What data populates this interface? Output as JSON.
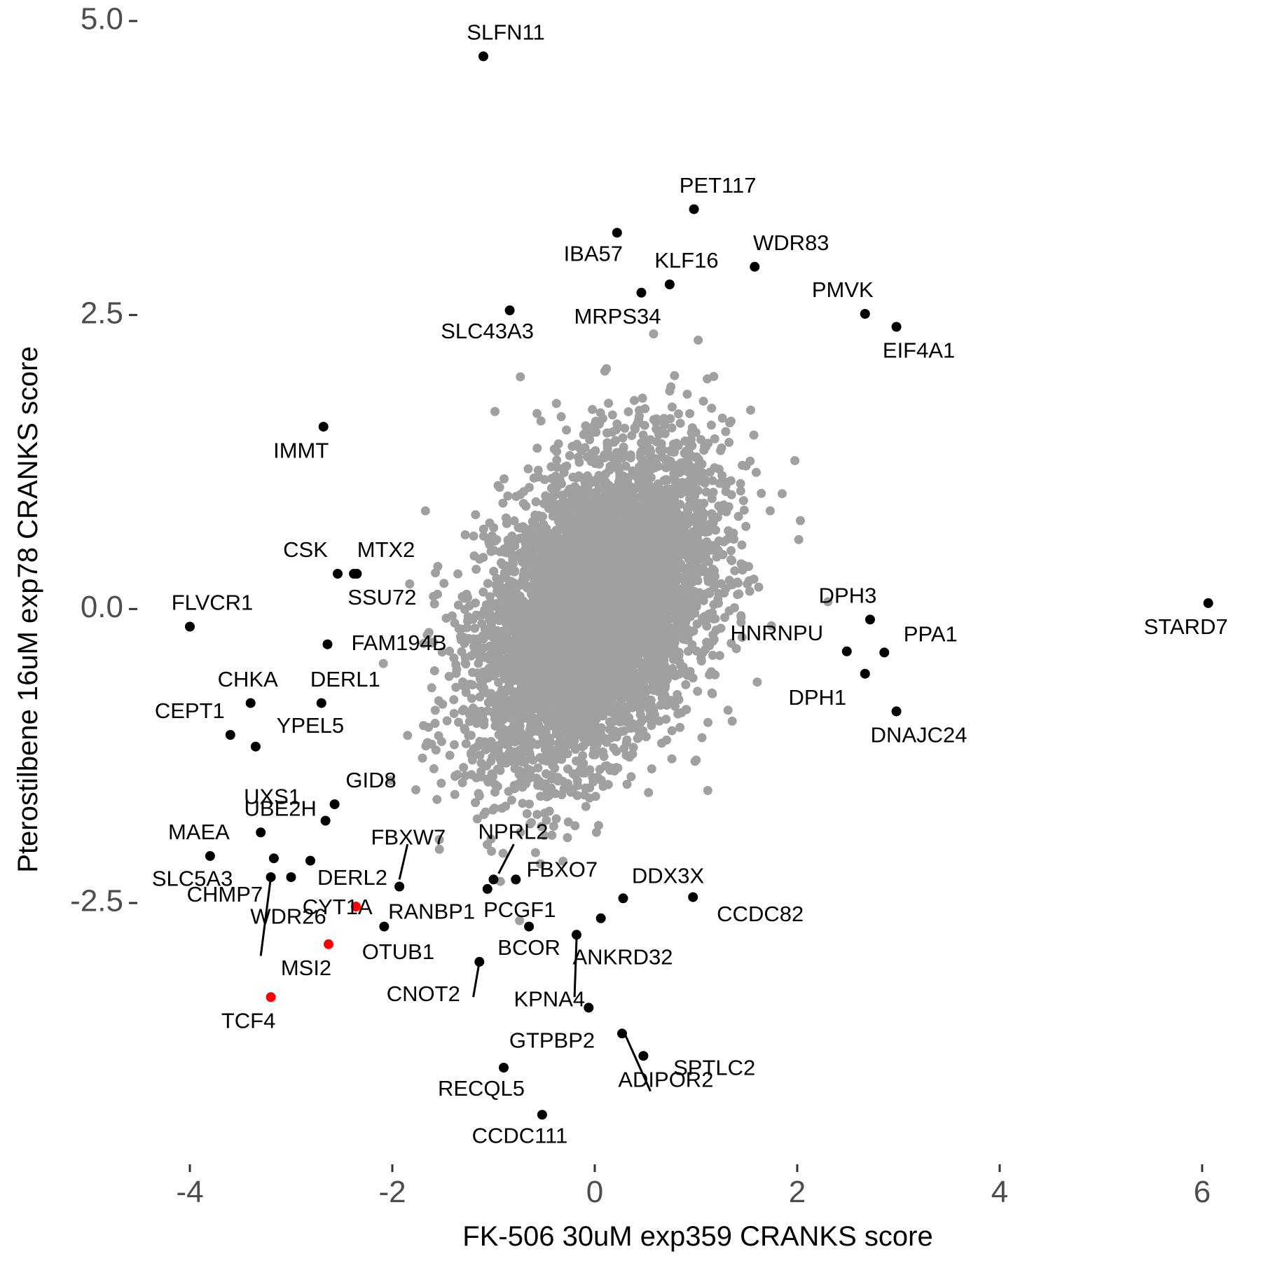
{
  "chart_data": {
    "type": "scatter",
    "xlabel": "FK-506 30uM exp359 CRANKS score",
    "ylabel": "Pterostilbene 16uM exp78 CRANKS score",
    "xlim": [
      -4.3,
      6.3
    ],
    "ylim": [
      -4.6,
      5.1
    ],
    "x_ticks": [
      -4,
      -2,
      0,
      2,
      4,
      6
    ],
    "x_tick_labels": [
      "-4",
      "-2",
      "0",
      "2",
      "4",
      "6"
    ],
    "y_ticks": [
      -2.5,
      0.0,
      2.5,
      5.0
    ],
    "y_tick_labels": [
      "-2.5",
      "0.0",
      "2.5",
      "5.0"
    ],
    "grid": false,
    "background_color": "#a0a0a0",
    "highlight_color": "#000000",
    "special_color": "#ff0000",
    "background_cloud": {
      "x_center": 0,
      "y_center": 0,
      "x_sd": 0.7,
      "y_sd": 0.75,
      "count": 6000
    },
    "series": [
      {
        "color": "#000000",
        "points": [
          {
            "x": -1.1,
            "y": 4.7,
            "label": "SLFN11"
          },
          {
            "x": 0.98,
            "y": 3.4,
            "label": "PET117"
          },
          {
            "x": 0.22,
            "y": 3.2,
            "label": "IBA57"
          },
          {
            "x": 1.58,
            "y": 2.91,
            "label": "WDR83"
          },
          {
            "x": 0.74,
            "y": 2.76,
            "label": "KLF16"
          },
          {
            "x": 0.46,
            "y": 2.69,
            "label": "MRPS34"
          },
          {
            "x": 2.67,
            "y": 2.51,
            "label": "PMVK"
          },
          {
            "x": -0.84,
            "y": 2.54,
            "label": "SLC43A3"
          },
          {
            "x": 2.98,
            "y": 2.4,
            "label": "EIF4A1"
          },
          {
            "x": -2.68,
            "y": 1.55,
            "label": "IMMT"
          },
          {
            "x": -2.54,
            "y": 0.3,
            "label": "CSK"
          },
          {
            "x": -2.38,
            "y": 0.3,
            "label": "MTX2"
          },
          {
            "x": -2.35,
            "y": 0.3,
            "label": "SSU72"
          },
          {
            "x": -4.0,
            "y": -0.15,
            "label": "FLVCR1"
          },
          {
            "x": 6.06,
            "y": 0.05,
            "label": "STARD7"
          },
          {
            "x": 2.72,
            "y": -0.09,
            "label": "DPH3"
          },
          {
            "x": -2.64,
            "y": -0.3,
            "label": "FAM194B"
          },
          {
            "x": 2.49,
            "y": -0.36,
            "label": "HNRNPU"
          },
          {
            "x": 2.86,
            "y": -0.37,
            "label": "PPA1"
          },
          {
            "x": 2.67,
            "y": -0.55,
            "label": "DPH1"
          },
          {
            "x": -3.4,
            "y": -0.8,
            "label": "CHKA"
          },
          {
            "x": -2.7,
            "y": -0.8,
            "label": "DERL1"
          },
          {
            "x": 2.98,
            "y": -0.87,
            "label": "DNAJC24"
          },
          {
            "x": -3.6,
            "y": -1.07,
            "label": "CEPT1"
          },
          {
            "x": -3.35,
            "y": -1.17,
            "label": "YPEL5"
          },
          {
            "x": -2.57,
            "y": -1.66,
            "label": "GID8"
          },
          {
            "x": -2.66,
            "y": -1.8,
            "label": "UXS1"
          },
          {
            "x": -3.3,
            "y": -1.9,
            "label": "UBE2H"
          },
          {
            "x": -3.8,
            "y": -2.1,
            "label": "MAEA"
          },
          {
            "x": -3.17,
            "y": -2.12,
            "label": "FBXW7"
          },
          {
            "x": -2.81,
            "y": -2.14,
            "label": "DERL2"
          },
          {
            "x": -3.2,
            "y": -2.28,
            "label": "SLC5A3"
          },
          {
            "x": -3.0,
            "y": -2.28,
            "label": "WDR26"
          },
          {
            "x": -1.93,
            "y": -2.36,
            "label": "RANBP1"
          },
          {
            "x": -1.0,
            "y": -2.3,
            "label": "NPRL2"
          },
          {
            "x": -0.78,
            "y": -2.3,
            "label": "FBXO7"
          },
          {
            "x": -1.06,
            "y": -2.38,
            "label": "PCGF1"
          },
          {
            "x": 0.28,
            "y": -2.46,
            "label": "DDX3X"
          },
          {
            "x": 0.97,
            "y": -2.45,
            "label": "CCDC82"
          },
          {
            "x": -2.08,
            "y": -2.7,
            "label": "OTUB1"
          },
          {
            "x": 0.06,
            "y": -2.63,
            "label": "CYT1A"
          },
          {
            "x": -0.65,
            "y": -2.7,
            "label": "BCOR"
          },
          {
            "x": -0.18,
            "y": -2.77,
            "label": "ANKRD32"
          },
          {
            "x": -1.14,
            "y": -3.0,
            "label": "CNOT2"
          },
          {
            "x": -0.06,
            "y": -3.39,
            "label": "KPNA4"
          },
          {
            "x": 0.27,
            "y": -3.61,
            "label": "GTPBP2"
          },
          {
            "x": 0.48,
            "y": -3.8,
            "label": "ADIPOR2"
          },
          {
            "x": -0.9,
            "y": -3.9,
            "label": "RECQL5"
          },
          {
            "x": -0.52,
            "y": -4.3,
            "label": "CCDC111"
          },
          {
            "x": -3.17,
            "y": -1.89,
            "label": "CHMP7"
          },
          {
            "x": 0.6,
            "y": -3.7,
            "label": "SPTLC2"
          }
        ]
      },
      {
        "color": "#ff0000",
        "points": [
          {
            "x": -2.36,
            "y": -2.53,
            "label": ""
          },
          {
            "x": -2.63,
            "y": -2.85,
            "label": "MSI2"
          },
          {
            "x": -3.2,
            "y": -3.3,
            "label": "TCF4"
          }
        ]
      }
    ]
  }
}
